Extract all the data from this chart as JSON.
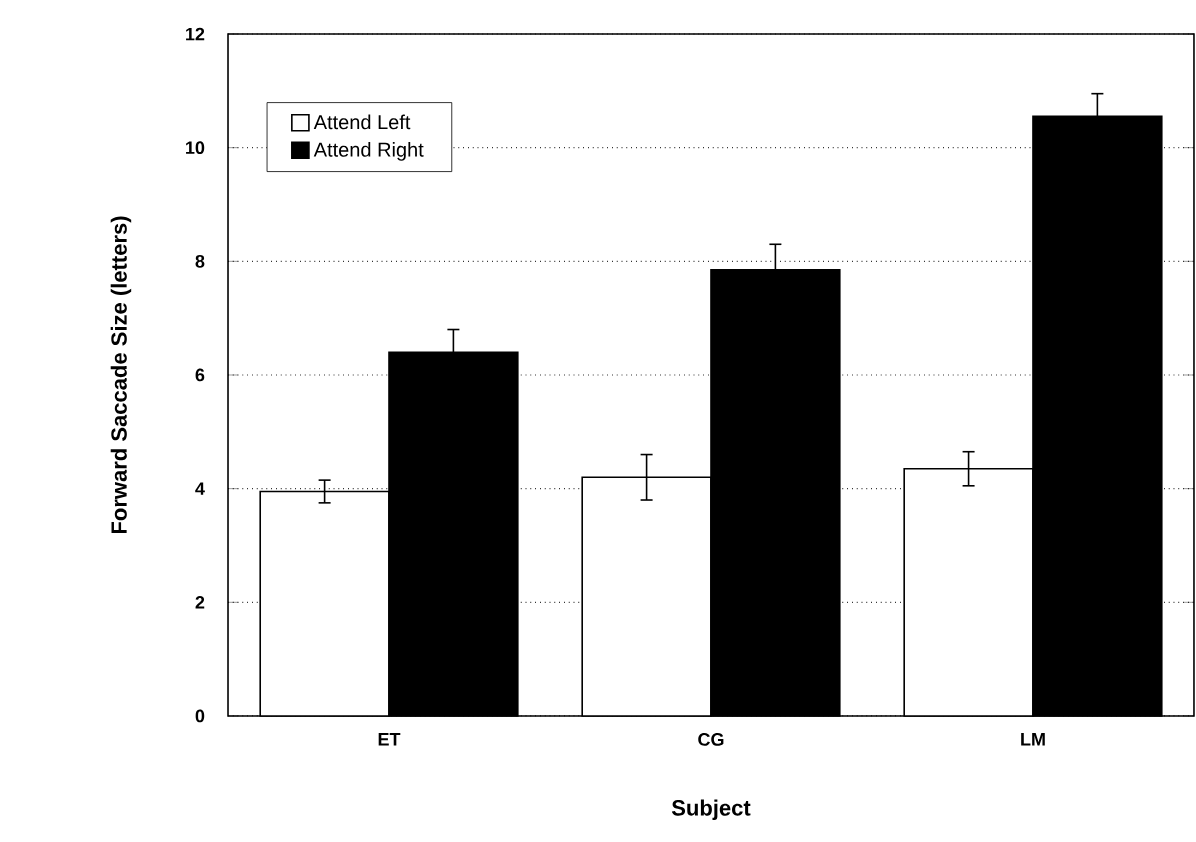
{
  "chart_data": {
    "type": "bar",
    "xlabel": "Subject",
    "ylabel": "Forward Saccade Size (letters)",
    "categories": [
      "ET",
      "CG",
      "LM"
    ],
    "series": [
      {
        "name": "Attend Left",
        "color": "#ffffff",
        "values": [
          3.95,
          4.2,
          4.35
        ],
        "errors": [
          0.2,
          0.4,
          0.3
        ]
      },
      {
        "name": "Attend Right",
        "color": "#000000",
        "values": [
          6.4,
          7.85,
          10.55
        ],
        "errors": [
          0.4,
          0.45,
          0.4
        ]
      }
    ],
    "ylim": [
      0,
      12
    ],
    "yticks": [
      0,
      2,
      4,
      6,
      8,
      10,
      12
    ],
    "grid": "y",
    "legend": "top left"
  }
}
